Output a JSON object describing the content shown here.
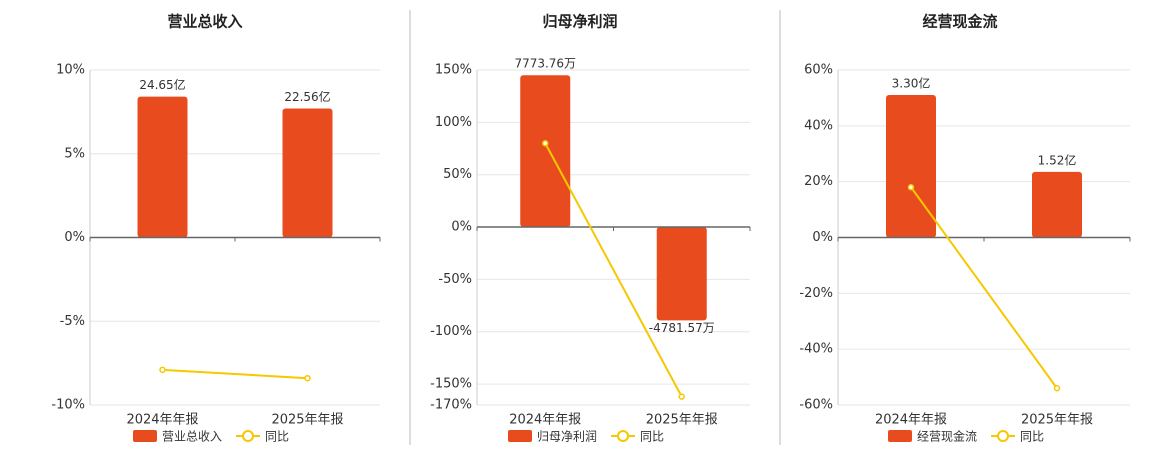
{
  "chart_data": [
    {
      "type": "bar",
      "title": "营业总收入",
      "categories": [
        "2024年年报",
        "2025年年报"
      ],
      "series": [
        {
          "name": "营业总收入",
          "color": "#e84c1e",
          "axis": "y2",
          "values": [
            24.65,
            22.56
          ],
          "value_labels": [
            "24.65亿",
            "22.56亿"
          ]
        },
        {
          "name": "同比",
          "color": "#f5c800",
          "type": "line",
          "values": [
            -7.9,
            -8.4
          ]
        }
      ],
      "ylim": [
        -10,
        10
      ],
      "yticks": [
        {
          "value": 10,
          "label": "10%"
        },
        {
          "value": 5,
          "label": "5%"
        },
        {
          "value": 0,
          "label": "0%"
        },
        {
          "value": -5,
          "label": "-5%"
        },
        {
          "value": -10,
          "label": "-10%"
        }
      ],
      "y2lim": [
        -29.3,
        29.3
      ],
      "grid": true
    },
    {
      "type": "bar",
      "title": "归母净利润",
      "categories": [
        "2024年年报",
        "2025年年报"
      ],
      "series": [
        {
          "name": "归母净利润",
          "color": "#e84c1e",
          "axis": "y2",
          "values": [
            7773.76,
            -4781.57
          ],
          "value_labels": [
            "7773.76万",
            "-4781.57万"
          ]
        },
        {
          "name": "同比",
          "color": "#f5c800",
          "type": "line",
          "values": [
            80,
            -162
          ]
        }
      ],
      "ylim": [
        -170,
        150
      ],
      "yticks": [
        {
          "value": 150,
          "label": "150%"
        },
        {
          "value": 100,
          "label": "100%"
        },
        {
          "value": 50,
          "label": "50%"
        },
        {
          "value": 0,
          "label": "0%"
        },
        {
          "value": -50,
          "label": "-50%"
        },
        {
          "value": -100,
          "label": "-100%"
        },
        {
          "value": -150,
          "label": "-150%"
        },
        {
          "value": -170,
          "label": "-170%"
        }
      ],
      "y2lim": [
        -9114,
        8042
      ],
      "grid": true
    },
    {
      "type": "bar",
      "title": "经营现金流",
      "categories": [
        "2024年年报",
        "2025年年报"
      ],
      "series": [
        {
          "name": "经营现金流",
          "color": "#e84c1e",
          "axis": "y2",
          "values": [
            3.3,
            1.52
          ],
          "value_labels": [
            "3.30亿",
            "1.52亿"
          ]
        },
        {
          "name": "同比",
          "color": "#f5c800",
          "type": "line",
          "values": [
            18,
            -54
          ]
        }
      ],
      "ylim": [
        -60,
        60
      ],
      "yticks": [
        {
          "value": 60,
          "label": "60%"
        },
        {
          "value": 40,
          "label": "40%"
        },
        {
          "value": 20,
          "label": "20%"
        },
        {
          "value": 0,
          "label": "0%"
        },
        {
          "value": -20,
          "label": "-20%"
        },
        {
          "value": -40,
          "label": "-40%"
        },
        {
          "value": -60,
          "label": "-60%"
        }
      ],
      "y2lim": [
        -3.88,
        3.88
      ],
      "grid": true
    }
  ]
}
